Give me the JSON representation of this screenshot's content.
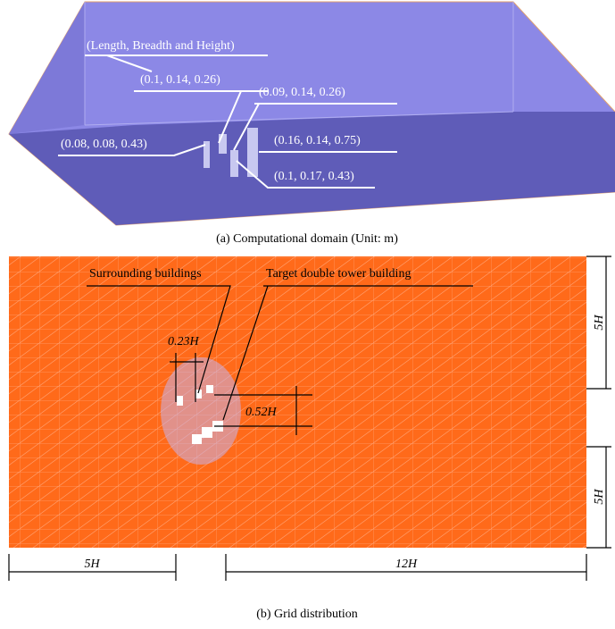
{
  "panel_a": {
    "annotations": [
      "(Length, Breadth and Height)",
      "(0.1, 0.14, 0.26)",
      "(0.09, 0.14, 0.26)",
      "(0.08, 0.08, 0.43)",
      "(0.16, 0.14, 0.75)",
      "(0.1, 0.17, 0.43)"
    ],
    "caption": "(a) Computational domain (Unit: m)"
  },
  "panel_b": {
    "labels": [
      "Surrounding buildings",
      "Target double tower building"
    ],
    "dimensions": [
      "0.23H",
      "0.52H",
      "5H",
      "5H",
      "5H",
      "12H"
    ],
    "caption": "(b) Grid distribution"
  }
}
